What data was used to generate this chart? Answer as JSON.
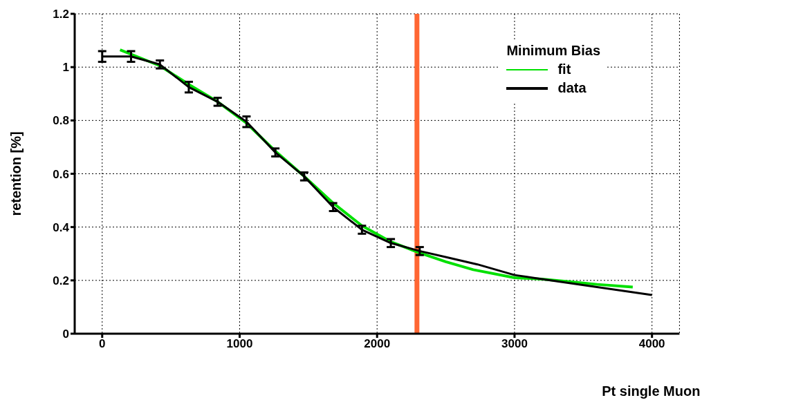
{
  "chart_data": {
    "type": "line",
    "xlabel": "Pt single Muon",
    "ylabel": "retention [%]",
    "legend_title": "Minimum Bias",
    "xlim": [
      -200,
      4200
    ],
    "xticks": [
      0,
      1000,
      2000,
      3000,
      4000
    ],
    "ylim": [
      0,
      1.2
    ],
    "yticks": [
      0,
      0.2,
      0.4,
      0.6,
      0.8,
      1,
      1.2
    ],
    "grid": true,
    "legend": "top right",
    "marker": "none",
    "line_style": "solid",
    "ref_lines": [
      {
        "axis": "x",
        "value": 2290,
        "color": "#ff6633"
      }
    ],
    "series": [
      {
        "name": "fit",
        "color": "#00e000",
        "x": [
          130,
          420,
          630,
          840,
          1050,
          1260,
          1470,
          1680,
          1890,
          2100,
          2300,
          2500,
          2700,
          3000,
          3200,
          3400,
          3600,
          3860
        ],
        "values": [
          1.065,
          1.005,
          0.935,
          0.87,
          0.79,
          0.685,
          0.59,
          0.49,
          0.405,
          0.345,
          0.305,
          0.27,
          0.24,
          0.21,
          0.205,
          0.195,
          0.185,
          0.175
        ]
      },
      {
        "name": "data",
        "color": "#000000",
        "x": [
          0,
          210,
          420,
          630,
          840,
          1050,
          1260,
          1470,
          1680,
          1890,
          2100,
          2310,
          2520,
          2730,
          3000,
          3200,
          3400,
          3600,
          3800,
          4000
        ],
        "values": [
          1.04,
          1.04,
          1.01,
          0.925,
          0.87,
          0.795,
          0.68,
          0.59,
          0.475,
          0.39,
          0.34,
          0.31,
          0.285,
          0.26,
          0.22,
          0.205,
          0.19,
          0.175,
          0.16,
          0.145
        ],
        "errors": [
          0.02,
          0.02,
          0.015,
          0.02,
          0.015,
          0.02,
          0.015,
          0.015,
          0.015,
          0.015,
          0.015,
          0.015,
          null,
          null,
          null,
          null,
          null,
          null,
          null,
          null
        ]
      }
    ]
  }
}
